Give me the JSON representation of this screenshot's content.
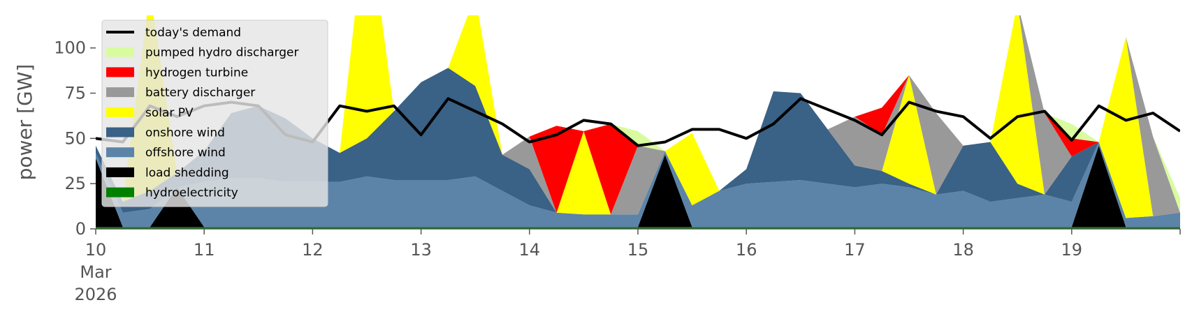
{
  "chart_data": {
    "type": "area",
    "ylabel": "power [GW]",
    "xlabel": "",
    "ylim": [
      0,
      118
    ],
    "xlim_days": [
      "2026-03-10",
      "2026-03-20"
    ],
    "y_ticks": [
      0,
      25,
      50,
      75,
      100
    ],
    "x_tick_labels": [
      "10",
      "11",
      "12",
      "13",
      "14",
      "15",
      "16",
      "17",
      "18",
      "19"
    ],
    "x_tick_sublabels": [
      "Mar",
      "2026"
    ],
    "grid": false,
    "legend_position": "top-left",
    "sample_times": [
      "2026-03-10 00:00",
      "2026-03-10 06:00",
      "2026-03-10 12:00",
      "2026-03-10 18:00",
      "2026-03-11 00:00",
      "2026-03-11 06:00",
      "2026-03-11 12:00",
      "2026-03-11 18:00",
      "2026-03-12 00:00",
      "2026-03-12 06:00",
      "2026-03-12 12:00",
      "2026-03-12 18:00",
      "2026-03-13 00:00",
      "2026-03-13 06:00",
      "2026-03-13 12:00",
      "2026-03-13 18:00",
      "2026-03-14 00:00",
      "2026-03-14 06:00",
      "2026-03-14 12:00",
      "2026-03-14 18:00",
      "2026-03-15 00:00",
      "2026-03-15 06:00",
      "2026-03-15 12:00",
      "2026-03-15 18:00",
      "2026-03-16 00:00",
      "2026-03-16 06:00",
      "2026-03-16 12:00",
      "2026-03-16 18:00",
      "2026-03-17 00:00",
      "2026-03-17 06:00",
      "2026-03-17 12:00",
      "2026-03-17 18:00",
      "2026-03-18 00:00",
      "2026-03-18 06:00",
      "2026-03-18 12:00",
      "2026-03-18 18:00",
      "2026-03-19 00:00",
      "2026-03-19 06:00",
      "2026-03-19 12:00",
      "2026-03-19 18:00",
      "2026-03-20 00:00"
    ],
    "stack_order": [
      "hydroelectricity",
      "load shedding",
      "offshore wind",
      "onshore wind",
      "solar PV",
      "battery discharger",
      "hydrogen turbine",
      "pumped hydro discharger"
    ],
    "colors": {
      "hydroelectricity": "#008000",
      "load shedding": "#000000",
      "offshore wind": "#5b84a8",
      "onshore wind": "#3a6186",
      "solar PV": "#ffff00",
      "battery discharger": "#999999",
      "hydrogen turbine": "#ff0000",
      "pumped hydro discharger": "#d9fba0",
      "today's demand": "#000000"
    },
    "series": [
      {
        "name": "hydroelectricity",
        "values": [
          1,
          1,
          1,
          1,
          1,
          1,
          1,
          1,
          1,
          1,
          1,
          1,
          1,
          1,
          1,
          1,
          1,
          1,
          1,
          1,
          1,
          1,
          1,
          1,
          1,
          1,
          1,
          1,
          1,
          1,
          1,
          1,
          1,
          1,
          1,
          1,
          1,
          1,
          1,
          1,
          1
        ]
      },
      {
        "name": "load shedding",
        "values": [
          38,
          0,
          0,
          22,
          0,
          0,
          0,
          0,
          0,
          0,
          0,
          0,
          0,
          0,
          0,
          0,
          0,
          0,
          0,
          0,
          0,
          40,
          0,
          0,
          0,
          0,
          0,
          0,
          0,
          0,
          0,
          0,
          0,
          0,
          0,
          0,
          0,
          45,
          0,
          0,
          0
        ]
      },
      {
        "name": "offshore wind",
        "values": [
          3,
          8,
          10,
          0,
          25,
          27,
          27,
          25,
          25,
          25,
          28,
          26,
          26,
          26,
          28,
          20,
          12,
          8,
          7,
          7,
          7,
          2,
          12,
          20,
          24,
          25,
          26,
          24,
          22,
          24,
          22,
          18,
          20,
          14,
          16,
          18,
          14,
          2,
          5,
          6,
          8
        ]
      },
      {
        "name": "onshore wind",
        "values": [
          4,
          6,
          10,
          8,
          17,
          36,
          40,
          35,
          24,
          16,
          21,
          38,
          54,
          62,
          50,
          20,
          20,
          0,
          0,
          0,
          0,
          0,
          0,
          0,
          8,
          50,
          48,
          30,
          12,
          7,
          2,
          0,
          25,
          33,
          8,
          0,
          25,
          0,
          0,
          0,
          0
        ]
      },
      {
        "name": "solar PV",
        "values": [
          0,
          0,
          110,
          0,
          0,
          0,
          0,
          0,
          0,
          0,
          128,
          0,
          0,
          0,
          50,
          0,
          0,
          0,
          46,
          0,
          0,
          0,
          40,
          0,
          0,
          0,
          0,
          0,
          0,
          0,
          60,
          0,
          0,
          0,
          100,
          0,
          0,
          0,
          100,
          0,
          0
        ]
      },
      {
        "name": "battery discharger",
        "values": [
          0,
          0,
          0,
          0,
          0,
          0,
          0,
          0,
          0,
          0,
          0,
          0,
          0,
          0,
          0,
          0,
          18,
          0,
          0,
          0,
          38,
          0,
          0,
          0,
          0,
          0,
          0,
          0,
          27,
          20,
          0,
          45,
          0,
          0,
          0,
          45,
          0,
          0,
          0,
          44,
          0
        ]
      },
      {
        "name": "hydrogen turbine",
        "values": [
          0,
          0,
          0,
          0,
          0,
          0,
          0,
          0,
          0,
          0,
          0,
          0,
          0,
          0,
          0,
          0,
          0,
          48,
          0,
          50,
          0,
          0,
          0,
          0,
          0,
          0,
          0,
          0,
          0,
          15,
          0,
          0,
          0,
          0,
          0,
          0,
          10,
          0,
          0,
          0,
          0
        ]
      },
      {
        "name": "pumped hydro discharger",
        "values": [
          0,
          0,
          0,
          0,
          0,
          0,
          0,
          0,
          0,
          0,
          0,
          0,
          0,
          0,
          0,
          0,
          0,
          0,
          0,
          0,
          8,
          0,
          0,
          0,
          0,
          0,
          0,
          0,
          0,
          0,
          0,
          0,
          0,
          0,
          0,
          0,
          8,
          0,
          0,
          0,
          8
        ]
      }
    ],
    "demand": {
      "name": "today's demand",
      "values": [
        50,
        48,
        68,
        62,
        68,
        70,
        68,
        52,
        48,
        68,
        65,
        68,
        52,
        72,
        65,
        58,
        48,
        52,
        60,
        58,
        46,
        48,
        55,
        55,
        50,
        58,
        72,
        66,
        60,
        52,
        70,
        65,
        62,
        50,
        62,
        65,
        49,
        68,
        60,
        64,
        54
      ]
    },
    "legend": [
      "today's demand",
      "pumped hydro discharger",
      "hydrogen turbine",
      "battery discharger",
      "solar PV",
      "onshore wind",
      "offshore wind",
      "load shedding",
      "hydroelectricity"
    ]
  }
}
